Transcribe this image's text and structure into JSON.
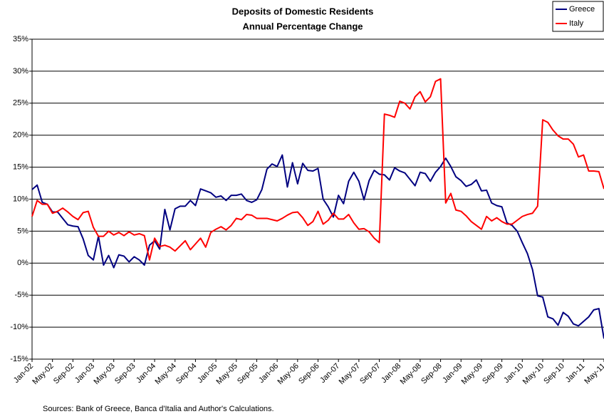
{
  "chart_data": {
    "type": "line",
    "title": "Deposits of Domestic Residents",
    "subtitle": "Annual Percentage Change",
    "source": "Sources: Bank of Greece, Banca d'Italia and Author's Calculations.",
    "categories": [
      "Jan-02",
      null,
      null,
      null,
      "May-02",
      null,
      null,
      null,
      "Sep-02",
      null,
      null,
      null,
      "Jan-03",
      null,
      null,
      null,
      "May-03",
      null,
      null,
      null,
      "Sep-03",
      null,
      null,
      null,
      "Jan-04",
      null,
      null,
      null,
      "May-04",
      null,
      null,
      null,
      "Sep-04",
      null,
      null,
      null,
      "Jan-05",
      null,
      null,
      null,
      "May-05",
      null,
      null,
      null,
      "Sep-05",
      null,
      null,
      null,
      "Jan-06",
      null,
      null,
      null,
      "May-06",
      null,
      null,
      null,
      "Sep-06",
      null,
      null,
      null,
      "Jan-07",
      null,
      null,
      null,
      "May-07",
      null,
      null,
      null,
      "Sep-07",
      null,
      null,
      null,
      "Jan-08",
      null,
      null,
      null,
      "May-08",
      null,
      null,
      null,
      "Sep-08",
      null,
      null,
      null,
      "Jan-09",
      null,
      null,
      null,
      "May-09",
      null,
      null,
      null,
      "Sep-09",
      null,
      null,
      null,
      "Jan-10",
      null,
      null,
      null,
      "May-10",
      null,
      null,
      null,
      "Sep-10",
      null,
      null,
      null,
      "Jan-11",
      null,
      null,
      null,
      "May-11"
    ],
    "series": [
      {
        "name": "Greece",
        "color": "#000080",
        "values": [
          11.5,
          12.2,
          9.5,
          9.2,
          8,
          8,
          7,
          6,
          5.8,
          5.7,
          3.8,
          1.2,
          0.5,
          4.2,
          -0.3,
          1.2,
          -0.7,
          1.3,
          1.1,
          0.2,
          1.0,
          0.5,
          -0.3,
          2.8,
          3.5,
          2.2,
          8.4,
          5.2,
          8.5,
          8.9,
          8.9,
          9.8,
          9.0,
          11.6,
          11.3,
          11.0,
          10.3,
          10.5,
          9.8,
          10.6,
          10.6,
          10.8,
          9.8,
          9.5,
          9.9,
          11.5,
          14.7,
          15.5,
          15.1,
          16.9,
          11.9,
          15.7,
          12.4,
          15.6,
          14.5,
          14.4,
          14.8,
          10.0,
          8.8,
          7.2,
          10.6,
          9.3,
          12.8,
          14.2,
          12.8,
          9.9,
          12.9,
          14.5,
          13.9,
          13.8,
          13.0,
          14.9,
          14.4,
          14.1,
          13.1,
          12.1,
          14.2,
          14.0,
          12.8,
          14.2,
          15.1,
          16.4,
          15.1,
          13.5,
          12.9,
          12.0,
          12.3,
          13.0,
          11.3,
          11.4,
          9.4,
          9.0,
          8.8,
          6.3,
          5.9,
          5.0,
          3.2,
          1.5,
          -1.0,
          -5.1,
          -5.3,
          -8.4,
          -8.7,
          -9.7,
          -7.7,
          -8.3,
          -9.5,
          -9.8,
          -9.1,
          -8.4,
          -7.3,
          -7.1,
          -11.8
        ]
      },
      {
        "name": "Italy",
        "color": "#ff0000",
        "values": [
          7.3,
          9.8,
          9.2,
          9.2,
          7.8,
          8.1,
          8.6,
          8.0,
          7.3,
          6.8,
          7.9,
          8.1,
          5.6,
          4.2,
          4.2,
          5.0,
          4.4,
          4.8,
          4.3,
          4.9,
          4.4,
          4.6,
          4.3,
          0.5,
          3.9,
          2.6,
          2.8,
          2.5,
          1.9,
          2.7,
          3.5,
          2.1,
          3.0,
          3.9,
          2.5,
          4.8,
          5.3,
          5.7,
          5.2,
          5.9,
          7.0,
          6.8,
          7.6,
          7.5,
          7.0,
          7.0,
          7.0,
          6.8,
          6.6,
          7.0,
          7.5,
          7.9,
          8.0,
          7.1,
          5.9,
          6.5,
          8.1,
          6.1,
          6.7,
          7.8,
          6.9,
          6.9,
          7.6,
          6.3,
          5.3,
          5.4,
          4.9,
          3.9,
          3.2,
          23.3,
          23.1,
          22.8,
          25.3,
          25.0,
          24.1,
          26.0,
          26.8,
          25.2,
          26.0,
          28.4,
          28.8,
          9.4,
          10.9,
          8.3,
          8.1,
          7.4,
          6.5,
          5.9,
          5.3,
          7.3,
          6.6,
          7.1,
          6.5,
          6.1,
          6.1,
          6.7,
          7.3,
          7.6,
          7.8,
          8.9,
          22.4,
          22.0,
          20.8,
          19.9,
          19.4,
          19.4,
          18.6,
          16.6,
          16.9,
          14.4,
          14.4,
          14.3,
          11.6
        ]
      }
    ],
    "ylim": [
      -15,
      35
    ],
    "yticks": [
      {
        "value": -15,
        "label": "-15%"
      },
      {
        "value": -10,
        "label": "-10%"
      },
      {
        "value": -5,
        "label": "-5%"
      },
      {
        "value": 0,
        "label": "0%"
      },
      {
        "value": 5,
        "label": "5%"
      },
      {
        "value": 10,
        "label": "10%"
      },
      {
        "value": 15,
        "label": "15%"
      },
      {
        "value": 20,
        "label": "20%"
      },
      {
        "value": 25,
        "label": "25%"
      },
      {
        "value": 30,
        "label": "30%"
      },
      {
        "value": 35,
        "label": "35%"
      }
    ],
    "grid": true,
    "legend": "top-right"
  }
}
